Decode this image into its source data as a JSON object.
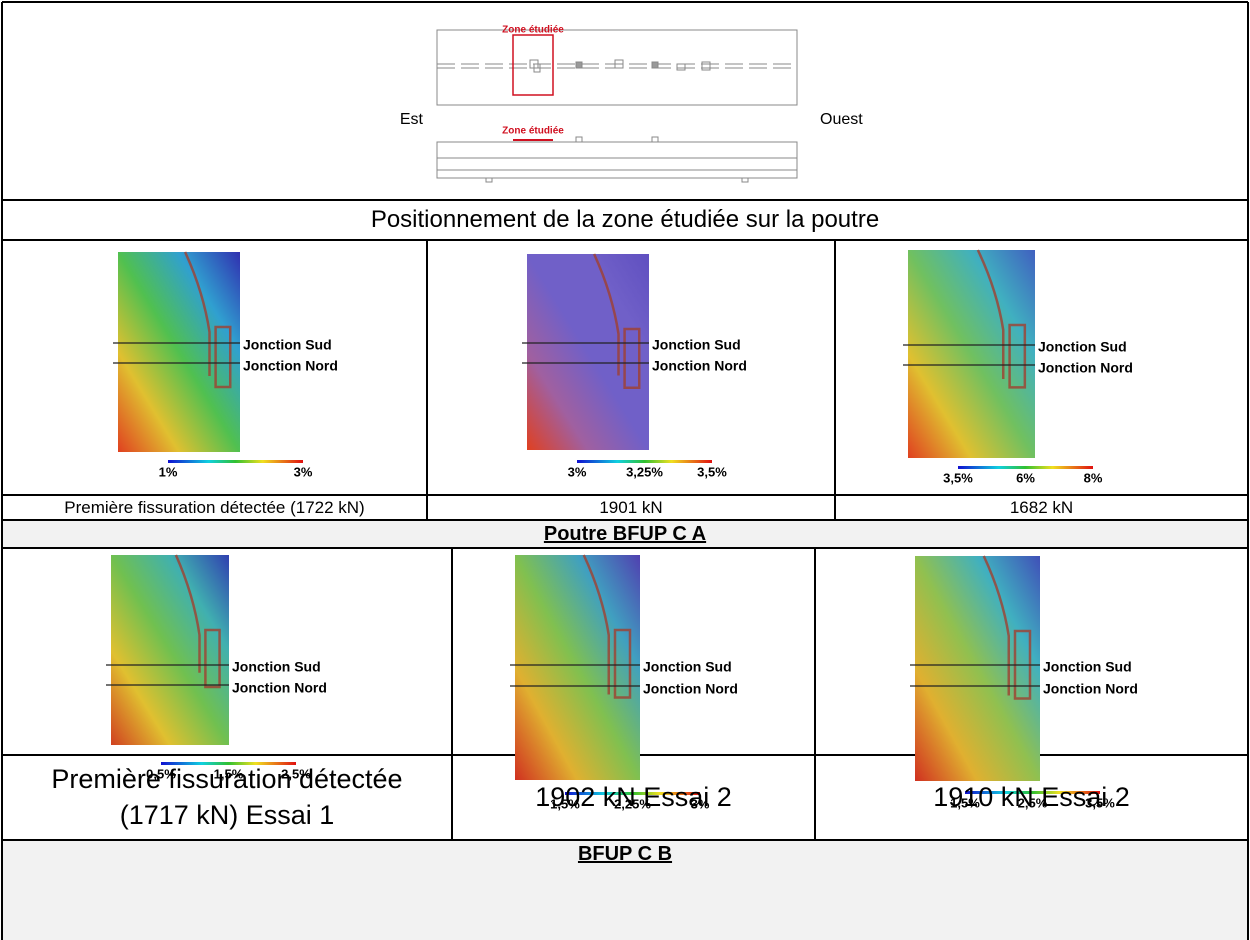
{
  "location": {
    "zone_label_top": "Zone étudiée",
    "zone_label_bottom": "Zone étudiée",
    "east": "Est",
    "west": "Ouest",
    "caption": "Positionnement de la zone étudiée sur la poutre"
  },
  "sections": [
    {
      "title": "Poutre BFUP C A",
      "panels": [
        {
          "labels": [
            "Jonction Sud",
            "Jonction Nord"
          ],
          "scale": [
            "1%",
            "3%"
          ],
          "caption": "Première fissuration détectée (1722 kN)"
        },
        {
          "labels": [
            "Jonction Sud",
            "Jonction Nord"
          ],
          "scale": [
            "3%",
            "3,25%",
            "3,5%"
          ],
          "caption": "1901 kN"
        },
        {
          "labels": [
            "Jonction Sud",
            "Jonction Nord"
          ],
          "scale": [
            "3,5%",
            "6%",
            "8%"
          ],
          "caption": "1682 kN"
        }
      ]
    },
    {
      "title": "BFUP C B",
      "panels": [
        {
          "labels": [
            "Jonction Sud",
            "Jonction Nord"
          ],
          "scale": [
            "0,5%",
            "1,5%",
            "2,5%"
          ],
          "caption": "Première fissuration détectée (1717 kN) Essai 1"
        },
        {
          "labels": [
            "Jonction Sud",
            "Jonction Nord"
          ],
          "scale": [
            "1,5%",
            "2,25%",
            "3%"
          ],
          "caption": "1902 kN Essai 2"
        },
        {
          "labels": [
            "Jonction Sud",
            "Jonction Nord"
          ],
          "scale": [
            "1,5%",
            "2,5%",
            "3,5%"
          ],
          "caption": "1910 kN Essai 2"
        }
      ]
    }
  ]
}
